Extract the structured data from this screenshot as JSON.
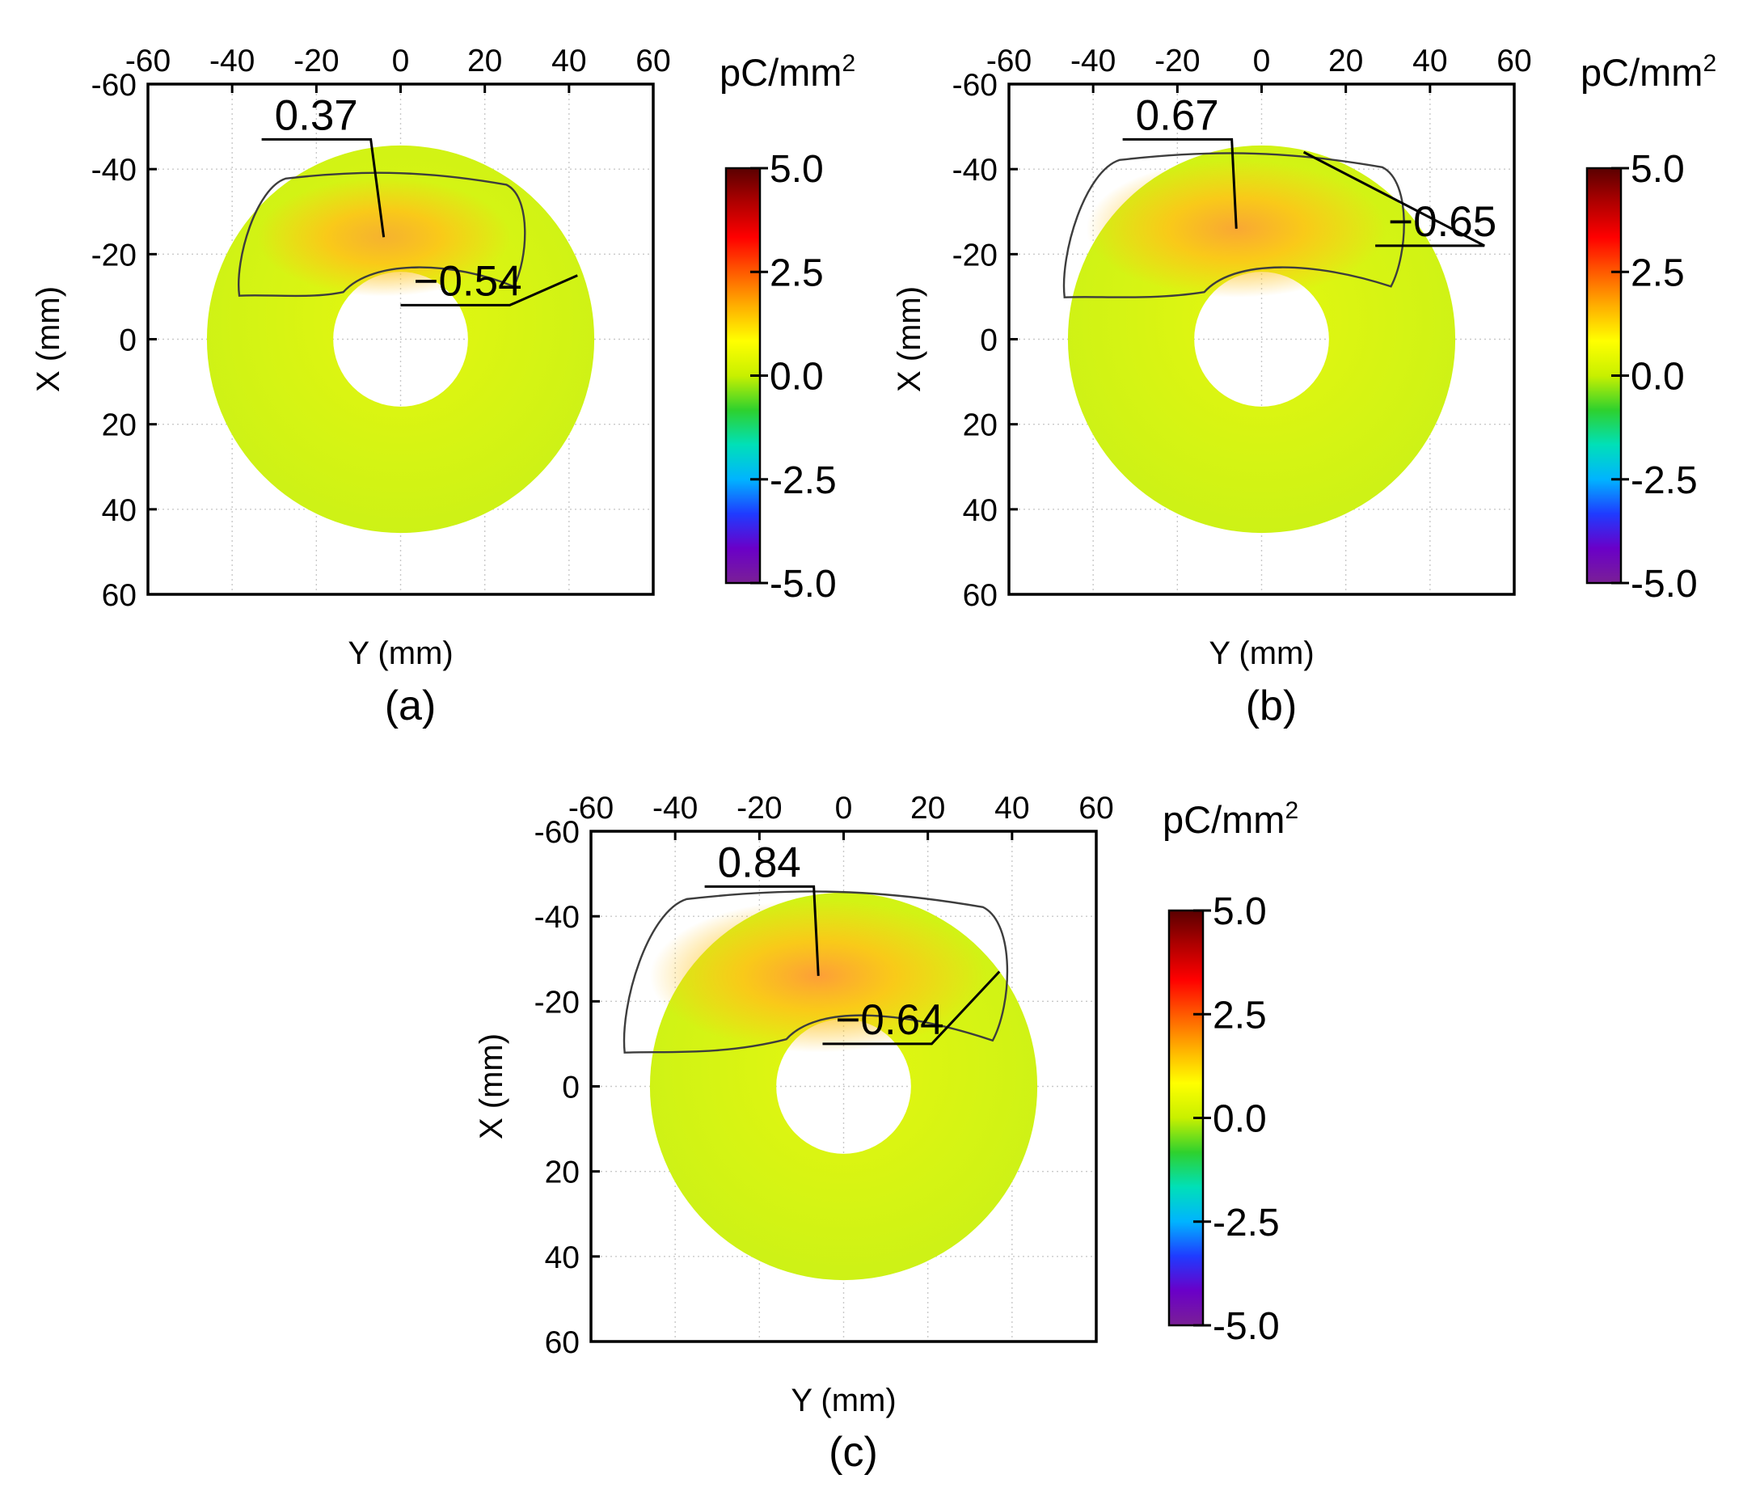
{
  "chart_data": [
    {
      "type": "heatmap",
      "panel": "(a)",
      "caption": "(a)",
      "xlabel": "Y (mm)",
      "ylabel": "X (mm)",
      "x_ticks": [
        "-60",
        "-40",
        "-20",
        "0",
        "20",
        "40",
        "60"
      ],
      "y_ticks": [
        "-60",
        "-40",
        "-20",
        "0",
        "20",
        "40",
        "60"
      ],
      "xlim": [
        -60,
        60
      ],
      "ylim": [
        -60,
        60
      ],
      "y_inverted": true,
      "x_axis_position": "top",
      "grid": true,
      "annulus": {
        "inner_radius_mm": 16,
        "outer_radius_mm": 46
      },
      "annotations": [
        {
          "text": "0.37",
          "kind": "max",
          "target_mm": [
            -4,
            -24
          ],
          "label_at_mm": [
            -33,
            -47
          ]
        },
        {
          "text": "−0.54",
          "kind": "min",
          "target_mm": [
            42,
            -15
          ],
          "label_at_mm": [
            0,
            -8
          ]
        }
      ],
      "hotspot": {
        "center_mm": [
          -4,
          -24
        ],
        "peak": 0.37,
        "size": 0.55
      },
      "colorbar": {
        "unit_base": "pC/mm",
        "unit_exp": "2",
        "ticks": [
          "5.0",
          "2.5",
          "0.0",
          "-2.5",
          "-5.0"
        ],
        "range": [
          -5,
          5
        ]
      }
    },
    {
      "type": "heatmap",
      "panel": "(b)",
      "caption": "(b)",
      "xlabel": "Y (mm)",
      "ylabel": "X (mm)",
      "x_ticks": [
        "-60",
        "-40",
        "-20",
        "0",
        "20",
        "40",
        "60"
      ],
      "y_ticks": [
        "-60",
        "-40",
        "-20",
        "0",
        "20",
        "40",
        "60"
      ],
      "xlim": [
        -60,
        60
      ],
      "ylim": [
        -60,
        60
      ],
      "y_inverted": true,
      "x_axis_position": "top",
      "grid": true,
      "annulus": {
        "inner_radius_mm": 16,
        "outer_radius_mm": 46
      },
      "annotations": [
        {
          "text": "0.67",
          "kind": "max",
          "target_mm": [
            -6,
            -26
          ],
          "label_at_mm": [
            -33,
            -47
          ]
        },
        {
          "text": "−0.65",
          "kind": "min",
          "target_mm": [
            10,
            -44
          ],
          "label_at_mm": [
            27,
            -22
          ]
        }
      ],
      "hotspot": {
        "center_mm": [
          -6,
          -26
        ],
        "peak": 0.67,
        "size": 0.8
      },
      "colorbar": {
        "unit_base": "pC/mm",
        "unit_exp": "2",
        "ticks": [
          "5.0",
          "2.5",
          "0.0",
          "-2.5",
          "-5.0"
        ],
        "range": [
          -5,
          5
        ]
      }
    },
    {
      "type": "heatmap",
      "panel": "(c)",
      "caption": "(c)",
      "xlabel": "Y (mm)",
      "ylabel": "X (mm)",
      "x_ticks": [
        "-60",
        "-40",
        "-20",
        "0",
        "20",
        "40",
        "60"
      ],
      "y_ticks": [
        "-60",
        "-40",
        "-20",
        "0",
        "20",
        "40",
        "60"
      ],
      "xlim": [
        -60,
        60
      ],
      "ylim": [
        -60,
        60
      ],
      "y_inverted": true,
      "x_axis_position": "top",
      "grid": true,
      "annulus": {
        "inner_radius_mm": 16,
        "outer_radius_mm": 46
      },
      "annotations": [
        {
          "text": "0.84",
          "kind": "max",
          "target_mm": [
            -6,
            -26
          ],
          "label_at_mm": [
            -33,
            -47
          ]
        },
        {
          "text": "−0.64",
          "kind": "min",
          "target_mm": [
            37,
            -27
          ],
          "label_at_mm": [
            -5,
            -10
          ]
        }
      ],
      "hotspot": {
        "center_mm": [
          -6,
          -26
        ],
        "peak": 0.84,
        "size": 1.0
      },
      "colorbar": {
        "unit_base": "pC/mm",
        "unit_exp": "2",
        "ticks": [
          "5.0",
          "2.5",
          "0.0",
          "-2.5",
          "-5.0"
        ],
        "range": [
          -5,
          5
        ]
      }
    }
  ],
  "colormap": {
    "name": "rainbow",
    "stops": [
      "#5a0000",
      "#b00000",
      "#ff0000",
      "#ff5a00",
      "#ffb000",
      "#ffff00",
      "#c8f000",
      "#2ed12e",
      "#00e0b8",
      "#00b4ff",
      "#1f3bff",
      "#6a00c8",
      "#7a1f96"
    ],
    "field_color": "#cdf216",
    "field_light": "#e4f70f",
    "hotspot_color": "#ffc21a",
    "hotspot_core": "#ff9a3a"
  }
}
